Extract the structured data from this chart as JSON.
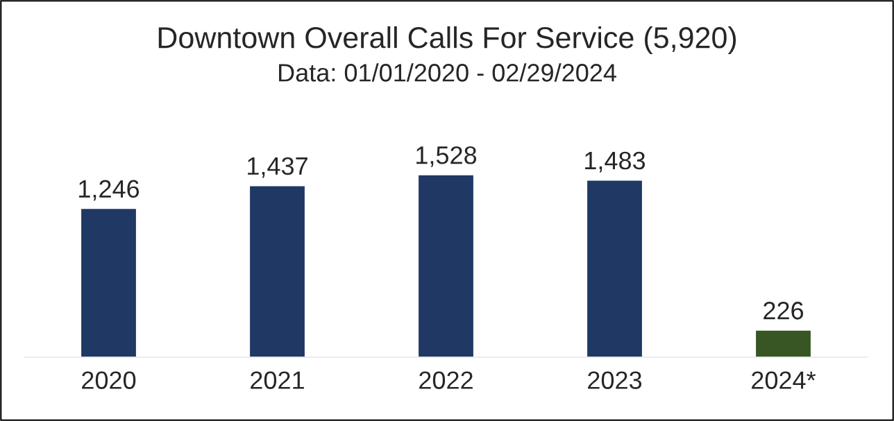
{
  "chart_data": {
    "type": "bar",
    "title": "Downtown Overall Calls For Service (5,920)",
    "subtitle": "Data: 01/01/2020 - 02/29/2024",
    "categories": [
      "2020",
      "2021",
      "2022",
      "2023",
      "2024*"
    ],
    "values": [
      1246,
      1437,
      1528,
      1483,
      226
    ],
    "colors": [
      "#1f3864",
      "#1f3864",
      "#1f3864",
      "#1f3864",
      "#375623"
    ],
    "data_labels": true,
    "value_labels": [
      "1,246",
      "1,437",
      "1,528",
      "1,483",
      "226"
    ],
    "tick_labels": "x",
    "grid": false,
    "legend": false
  }
}
